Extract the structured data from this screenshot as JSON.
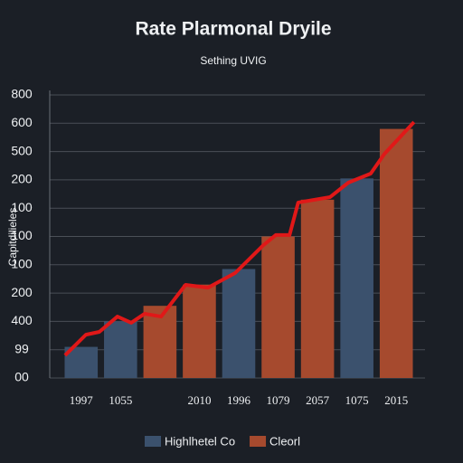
{
  "chart_data": {
    "type": "bar",
    "title": "Rate Plarmonal Dryile",
    "subtitle": "Sething UVIG",
    "y_label": "Capitdilieles",
    "categories": [
      "1997",
      "1055",
      null,
      "2010",
      "1996",
      "1079",
      "2057",
      "1075",
      "2015"
    ],
    "series": [
      {
        "name": "Highlhetel Co",
        "color": "#3b516d",
        "values": [
          1.1,
          2.0,
          null,
          null,
          3.85,
          null,
          null,
          7.05,
          null
        ]
      },
      {
        "name": "Cleorl",
        "color": "#a64a2e",
        "values": [
          null,
          null,
          2.55,
          3.3,
          null,
          5.0,
          6.3,
          null,
          8.8
        ]
      }
    ],
    "line": {
      "color": "#e01818",
      "x": [
        -0.41,
        0.12,
        0.46,
        0.92,
        1.27,
        1.61,
        2.03,
        2.65,
        3.22,
        3.91,
        4.6,
        4.94,
        5.29,
        5.51,
        6.32,
        6.78,
        7.35,
        7.7,
        8.45
      ],
      "values": [
        0.8,
        1.53,
        1.63,
        2.17,
        1.95,
        2.27,
        2.17,
        3.29,
        3.19,
        3.71,
        4.66,
        5.05,
        5.05,
        6.2,
        6.39,
        6.9,
        7.22,
        7.92,
        9.04
      ]
    },
    "ylim": [
      0,
      10
    ],
    "yticks": [
      {
        "value": 0,
        "label": "00"
      },
      {
        "value": 1,
        "label": "99"
      },
      {
        "value": 2,
        "label": "400"
      },
      {
        "value": 3,
        "label": "200"
      },
      {
        "value": 4,
        "label": "100"
      },
      {
        "value": 5,
        "label": "100"
      },
      {
        "value": 6,
        "label": "100"
      },
      {
        "value": 7,
        "label": "200"
      },
      {
        "value": 8,
        "label": "500"
      },
      {
        "value": 9,
        "label": "600"
      },
      {
        "value": 10,
        "label": "800"
      }
    ],
    "grid": true
  }
}
